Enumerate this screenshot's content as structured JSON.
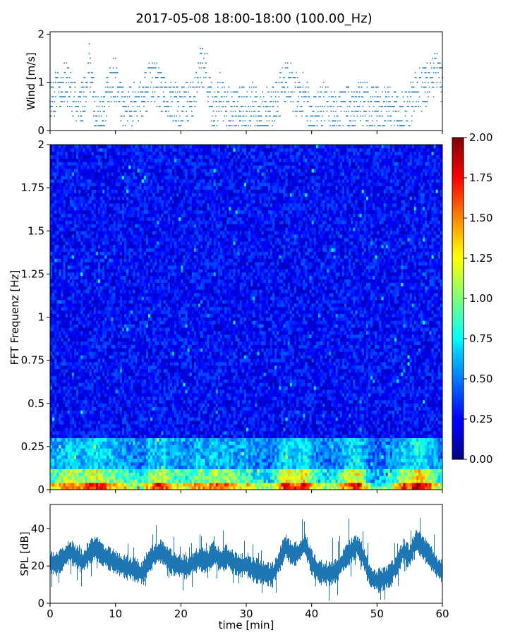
{
  "figure": {
    "title": "2017-05-08 18:00-18:00 (100.00_Hz)"
  },
  "chart_data": [
    {
      "type": "scatter",
      "panel": "wind",
      "ylabel": "Wind [m/s]",
      "xlabel": "",
      "xlim": [
        0,
        60
      ],
      "ylim": [
        0,
        2.05
      ],
      "yticks": [
        0,
        1,
        2
      ],
      "series": [
        {
          "color": "#1f77b4",
          "x": [
            0,
            1,
            2,
            3,
            4,
            5,
            6,
            7,
            8,
            9,
            10,
            11,
            12,
            13,
            14,
            15,
            16,
            17,
            18,
            19,
            20,
            21,
            22,
            23,
            24,
            25,
            26,
            27,
            28,
            29,
            30,
            31,
            32,
            33,
            34,
            35,
            36,
            37,
            38,
            39,
            40,
            41,
            42,
            43,
            44,
            45,
            46,
            47,
            48,
            49,
            50,
            51,
            52,
            53,
            54,
            55,
            56,
            57,
            58,
            59,
            60
          ],
          "y": [
            0.7,
            0.8,
            1.0,
            0.9,
            0.5,
            0.6,
            1.4,
            0.3,
            0.2,
            0.9,
            1.1,
            0.5,
            0.4,
            0.7,
            0.6,
            0.9,
            1.0,
            0.8,
            0.6,
            0.6,
            0.5,
            0.6,
            0.6,
            1.4,
            1.2,
            0.3,
            0.8,
            0.5,
            0.4,
            0.5,
            0.4,
            0.6,
            0.3,
            0.5,
            0.5,
            0.7,
            1.0,
            0.9,
            0.7,
            0.8,
            0.2,
            0.4,
            0.6,
            0.5,
            0.3,
            0.6,
            0.4,
            0.5,
            0.6,
            0.5,
            0.5,
            0.4,
            0.5,
            0.4,
            0.3,
            0.5,
            0.8,
            0.9,
            1.0,
            1.2,
            1.0
          ]
        }
      ]
    },
    {
      "type": "heatmap",
      "panel": "spectrogram",
      "ylabel": "FFT Frequenz [Hz]",
      "xlabel": "",
      "xlim": [
        0,
        60
      ],
      "ylim": [
        0,
        2
      ],
      "yticks": [
        0,
        0.25,
        0.5,
        0.75,
        1,
        1.25,
        1.5,
        1.75,
        2
      ],
      "yticklabels": [
        "0",
        "0.25",
        "0.5",
        "0.75",
        "1",
        "1.25",
        "1.5",
        "1.75",
        "2"
      ],
      "colormap": "jet",
      "colorbar": {
        "range": [
          0,
          2
        ],
        "ticks": [
          "0.00",
          "0.25",
          "0.50",
          "0.75",
          "1.00",
          "1.25",
          "1.50",
          "1.75",
          "2.00"
        ]
      }
    },
    {
      "type": "line",
      "panel": "spl",
      "ylabel": "SPL [dB]",
      "xlabel": "time [min]",
      "xlim": [
        0,
        60
      ],
      "ylim": [
        0,
        53
      ],
      "yticks": [
        0,
        20,
        40
      ],
      "xticks": [
        0,
        10,
        20,
        30,
        40,
        50,
        60
      ],
      "series": [
        {
          "color": "#1f77b4",
          "x": [
            0,
            1,
            2,
            3,
            4,
            5,
            6,
            7,
            8,
            9,
            10,
            11,
            12,
            13,
            14,
            15,
            16,
            17,
            18,
            19,
            20,
            21,
            22,
            23,
            24,
            25,
            26,
            27,
            28,
            29,
            30,
            31,
            32,
            33,
            34,
            35,
            36,
            37,
            38,
            39,
            40,
            41,
            42,
            43,
            44,
            45,
            46,
            47,
            48,
            49,
            50,
            51,
            52,
            53,
            54,
            55,
            56,
            57,
            58,
            59,
            60
          ],
          "y": [
            22,
            21,
            24,
            28,
            25,
            22,
            27,
            30,
            26,
            24,
            22,
            20,
            19,
            18,
            16,
            22,
            26,
            28,
            24,
            21,
            20,
            19,
            22,
            24,
            22,
            27,
            23,
            25,
            22,
            20,
            21,
            18,
            17,
            16,
            15,
            22,
            31,
            26,
            27,
            32,
            22,
            17,
            16,
            16,
            18,
            24,
            28,
            31,
            24,
            14,
            12,
            13,
            15,
            20,
            28,
            25,
            34,
            30,
            26,
            20,
            17
          ]
        }
      ]
    }
  ]
}
